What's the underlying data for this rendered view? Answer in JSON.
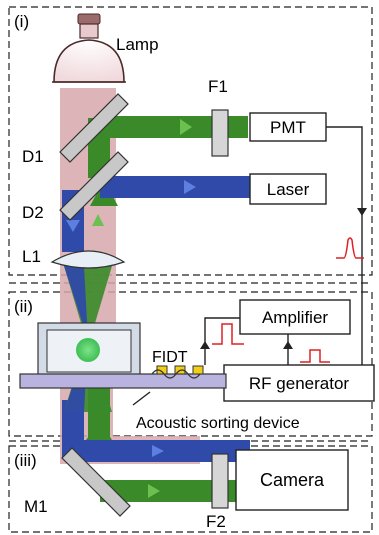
{
  "sections": {
    "i": "(i)",
    "ii": "(ii)",
    "iii": "(iii)"
  },
  "labels": {
    "lamp": "Lamp",
    "f1": "F1",
    "f2": "F2",
    "d1": "D1",
    "d2": "D2",
    "l1": "L1",
    "m1": "M1",
    "fidt": "FIDT",
    "acoustic": "Acoustic sorting device"
  },
  "boxes": {
    "pmt": "PMT",
    "laser": "Laser",
    "amplifier": "Amplifier",
    "rf_generator": "RF generator",
    "camera": "Camera"
  },
  "colors": {
    "illumination": "#d7a8ad",
    "green_beam": "#3a8a2a",
    "blue_beam": "#2f4aa8",
    "signal_red": "#e02020",
    "electrode": "#f1cf17",
    "substrate": "#b9b3df",
    "chamber": "#d2dbe6",
    "cell": "#5ed46a"
  }
}
